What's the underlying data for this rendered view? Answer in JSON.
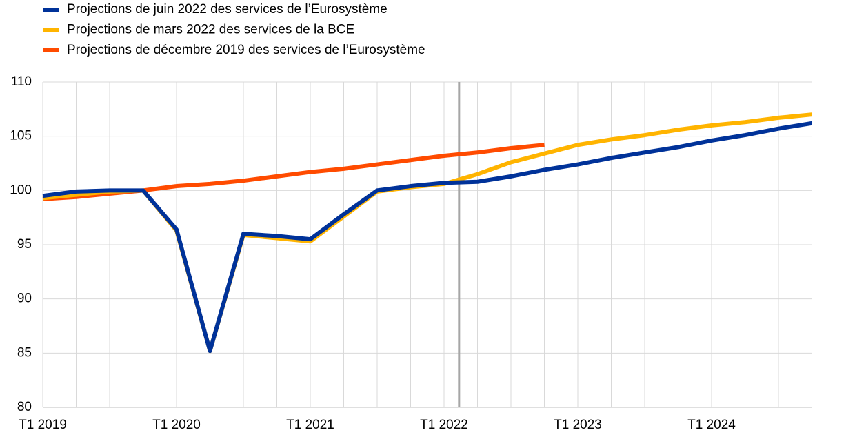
{
  "chart_data": {
    "type": "line",
    "categories": [
      "T1 2019",
      null,
      null,
      null,
      "T1 2020",
      null,
      null,
      null,
      "T1 2021",
      null,
      null,
      null,
      "T1 2022",
      null,
      null,
      null,
      "T1 2023",
      null,
      null,
      null,
      "T1 2024",
      null,
      null,
      null
    ],
    "series": [
      {
        "name": "Projections de juin 2022 des services de l’Eurosystème",
        "color": "#003299",
        "values": [
          99.5,
          99.9,
          100.0,
          100.0,
          96.4,
          85.2,
          96.0,
          95.8,
          95.5,
          97.8,
          100.0,
          100.4,
          100.7,
          100.8,
          101.3,
          101.9,
          102.4,
          103.0,
          103.5,
          104.0,
          104.6,
          105.1,
          105.7,
          106.2
        ]
      },
      {
        "name": "Projections de mars 2022 des services de la BCE",
        "color": "#ffb400",
        "values": [
          99.3,
          99.6,
          99.9,
          100.0,
          96.3,
          85.2,
          95.9,
          95.6,
          95.3,
          97.6,
          99.9,
          100.3,
          100.6,
          101.5,
          102.6,
          103.4,
          104.2,
          104.7,
          105.1,
          105.6,
          106.0,
          106.3,
          106.7,
          107.0
        ]
      },
      {
        "name": "Projections de décembre 2019 des services de l’Eurosystème",
        "color": "#ff4b00",
        "values": [
          99.2,
          99.4,
          99.7,
          100.0,
          100.4,
          100.6,
          100.9,
          101.3,
          101.7,
          102.0,
          102.4,
          102.8,
          103.2,
          103.5,
          103.9,
          104.2,
          null,
          null,
          null,
          null,
          null,
          null,
          null,
          null
        ]
      }
    ],
    "ylim": [
      80,
      110
    ],
    "yticks": [
      80,
      85,
      90,
      95,
      100,
      105,
      110
    ],
    "grid": true,
    "cutoff_index": 12.45,
    "cutoff_color": "#a6a6a6"
  }
}
